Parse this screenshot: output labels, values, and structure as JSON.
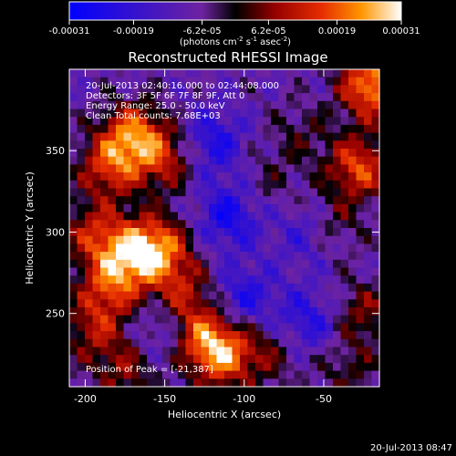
{
  "chart_data": {
    "type": "heatmap",
    "title": "Reconstructed RHESSI Image",
    "xlabel": "Heliocentric X (arcsec)",
    "ylabel": "Heliocentric Y (arcsec)",
    "xlim": [
      -210,
      -15
    ],
    "ylim": [
      205,
      400
    ],
    "x_ticks": [
      -200,
      -150,
      -100,
      -50
    ],
    "y_ticks": [
      250,
      300,
      350
    ],
    "colorbar": {
      "range": [
        -0.00031,
        0.00031
      ],
      "tick_values": [
        -0.00031,
        -0.00019,
        -6.2e-05,
        6.2e-05,
        0.00019,
        0.00031
      ],
      "tick_labels": [
        "-0.00031",
        "-0.00019",
        "-6.2e-05",
        "6.2e-05",
        "0.00019",
        "0.00031"
      ],
      "unit_text": "(photons cm",
      "unit_exp1": "-2",
      "unit_mid": " s",
      "unit_exp2": "-1",
      "unit_mid2": " asec",
      "unit_exp3": "-2",
      "unit_close": ")"
    },
    "info_lines": [
      "20-Jul-2013 02:40:16.000 to 02:44:08.000",
      "Detectors: 3F 5F 6F 7F 8F 9F, Att 0",
      "Energy Range: 25.0 - 50.0 keV",
      "Clean     Total counts: 7.68E+03"
    ],
    "peak_label": "Position of Peak = [-21,387]",
    "sources": [
      {
        "x": -20,
        "y": 390,
        "amp": 1.05
      },
      {
        "x": -28,
        "y": 340,
        "amp": 0.8
      },
      {
        "x": -45,
        "y": 305,
        "amp": 0.35
      },
      {
        "x": -170,
        "y": 360,
        "amp": 0.85
      },
      {
        "x": -185,
        "y": 340,
        "amp": 0.7
      },
      {
        "x": -150,
        "y": 345,
        "amp": 0.6
      },
      {
        "x": -155,
        "y": 290,
        "amp": 0.95
      },
      {
        "x": -175,
        "y": 285,
        "amp": 0.75
      },
      {
        "x": -195,
        "y": 300,
        "amp": 0.55
      },
      {
        "x": -185,
        "y": 265,
        "amp": 0.6
      },
      {
        "x": -140,
        "y": 265,
        "amp": 0.5
      },
      {
        "x": -115,
        "y": 225,
        "amp": 1.0
      },
      {
        "x": -130,
        "y": 240,
        "amp": 0.6
      },
      {
        "x": -195,
        "y": 240,
        "amp": 0.5
      },
      {
        "x": -175,
        "y": 215,
        "amp": 0.45
      },
      {
        "x": -85,
        "y": 225,
        "amp": 0.35
      },
      {
        "x": -25,
        "y": 250,
        "amp": 0.45
      },
      {
        "x": -35,
        "y": 215,
        "amp": 0.3
      },
      {
        "x": -85,
        "y": 330,
        "amp": 0.2
      },
      {
        "x": -65,
        "y": 360,
        "amp": 0.25
      },
      {
        "x": -110,
        "y": 310,
        "amp": -0.55
      },
      {
        "x": -120,
        "y": 355,
        "amp": -0.5
      },
      {
        "x": -100,
        "y": 260,
        "amp": -0.45
      },
      {
        "x": -60,
        "y": 245,
        "amp": -0.45
      },
      {
        "x": -150,
        "y": 240,
        "amp": -0.35
      },
      {
        "x": -60,
        "y": 300,
        "amp": -0.35
      }
    ]
  },
  "footer_timestamp": "20-Jul-2013 08:47"
}
